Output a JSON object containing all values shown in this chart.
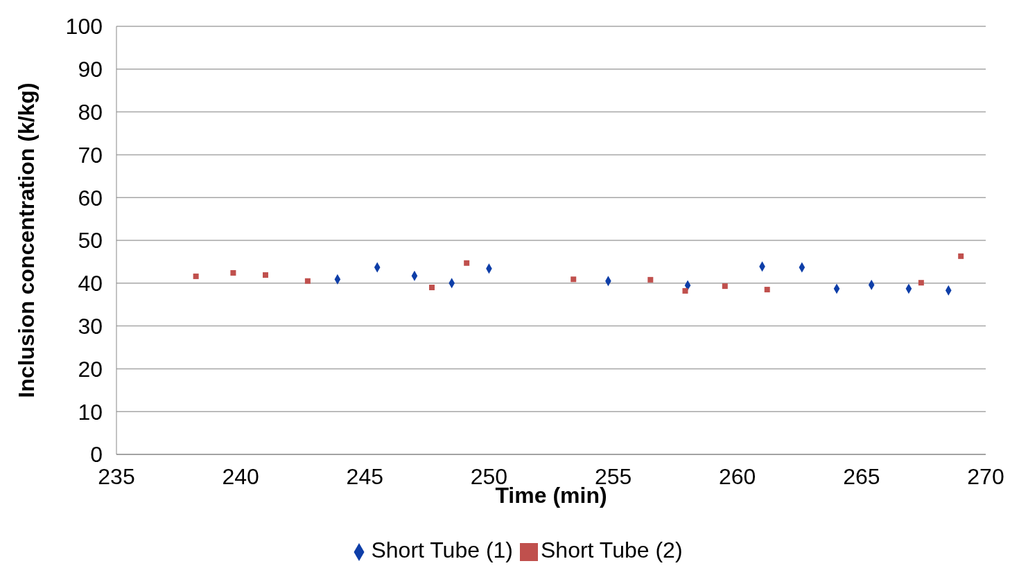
{
  "chart_data": {
    "type": "scatter",
    "xlabel": "Time (min)",
    "ylabel": "Inclusion  concentration  (k/kg)",
    "xlim": [
      235,
      270
    ],
    "xticks": [
      235,
      240,
      245,
      250,
      255,
      260,
      265,
      270
    ],
    "ylim": [
      0,
      100
    ],
    "yticks": [
      0,
      10,
      20,
      30,
      40,
      50,
      60,
      70,
      80,
      90,
      100
    ],
    "grid": "y",
    "legend": "bottom",
    "series": [
      {
        "name": "Short Tube (1)",
        "color": "#0e3ea8",
        "marker": "diamond",
        "x": [
          243.9,
          245.5,
          247.0,
          248.5,
          250.0,
          254.8,
          258.0,
          261.0,
          262.6,
          264.0,
          265.4,
          266.9,
          268.5
        ],
        "values": [
          40.9,
          43.7,
          41.7,
          40.0,
          43.4,
          40.5,
          39.5,
          43.9,
          43.7,
          38.7,
          39.6,
          38.7,
          38.3
        ]
      },
      {
        "name": "Short Tube (2)",
        "color": "#c0504d",
        "marker": "square",
        "x": [
          238.2,
          239.7,
          241.0,
          242.7,
          247.7,
          249.1,
          253.4,
          256.5,
          257.9,
          259.5,
          261.2,
          267.4,
          269.0
        ],
        "values": [
          41.6,
          42.4,
          41.9,
          40.5,
          39.0,
          44.7,
          40.9,
          40.8,
          38.2,
          39.3,
          38.5,
          40.1,
          46.3
        ]
      }
    ]
  }
}
